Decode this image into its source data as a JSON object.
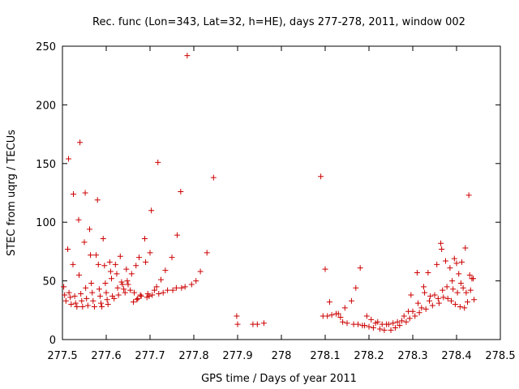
{
  "chart_data": {
    "type": "scatter",
    "title": "Rec. func (Lon=343, Lat=32, h=HE), days 277-278, 2011, window 002",
    "xlabel": "GPS time / Days of year 2011",
    "ylabel": "STEC from uqrg / TECUs",
    "xlim": [
      277.5,
      278.5
    ],
    "ylim": [
      0,
      250
    ],
    "xticks": [
      277.5,
      277.6,
      277.7,
      277.8,
      277.9,
      278.0,
      278.1,
      278.2,
      278.3,
      278.4,
      278.5
    ],
    "xtick_labels": [
      "277.5",
      "277.6",
      "277.7",
      "277.8",
      "277.9",
      "278",
      "278.1",
      "278.2",
      "278.3",
      "278.4",
      "278.5"
    ],
    "yticks": [
      0,
      50,
      100,
      150,
      200,
      250
    ],
    "ytick_labels": [
      "0",
      "50",
      "100",
      "150",
      "200",
      "250"
    ],
    "marker": "+",
    "color": "#cc0000",
    "series": [
      {
        "name": "STEC",
        "points": [
          [
            277.503,
            45
          ],
          [
            277.505,
            38
          ],
          [
            277.508,
            33
          ],
          [
            277.512,
            77
          ],
          [
            277.514,
            154
          ],
          [
            277.515,
            40
          ],
          [
            277.518,
            36
          ],
          [
            277.52,
            30
          ],
          [
            277.524,
            64
          ],
          [
            277.525,
            124
          ],
          [
            277.528,
            37
          ],
          [
            277.53,
            31
          ],
          [
            277.533,
            28
          ],
          [
            277.537,
            102
          ],
          [
            277.538,
            55
          ],
          [
            277.54,
            168
          ],
          [
            277.542,
            39
          ],
          [
            277.544,
            33
          ],
          [
            277.546,
            28
          ],
          [
            277.55,
            83
          ],
          [
            277.552,
            125
          ],
          [
            277.553,
            44
          ],
          [
            277.555,
            35
          ],
          [
            277.558,
            29
          ],
          [
            277.562,
            94
          ],
          [
            277.564,
            72
          ],
          [
            277.566,
            48
          ],
          [
            277.568,
            40
          ],
          [
            277.57,
            33
          ],
          [
            277.573,
            28
          ],
          [
            277.577,
            72
          ],
          [
            277.58,
            119
          ],
          [
            277.582,
            64
          ],
          [
            277.584,
            43
          ],
          [
            277.586,
            37
          ],
          [
            277.588,
            31
          ],
          [
            277.59,
            28
          ],
          [
            277.593,
            86
          ],
          [
            277.596,
            63
          ],
          [
            277.598,
            48
          ],
          [
            277.6,
            40
          ],
          [
            277.602,
            34
          ],
          [
            277.604,
            30
          ],
          [
            277.608,
            66
          ],
          [
            277.61,
            58
          ],
          [
            277.612,
            52
          ],
          [
            277.614,
            37
          ],
          [
            277.618,
            35
          ],
          [
            277.621,
            64
          ],
          [
            277.624,
            56
          ],
          [
            277.626,
            44
          ],
          [
            277.628,
            38
          ],
          [
            277.632,
            71
          ],
          [
            277.635,
            49
          ],
          [
            277.637,
            47
          ],
          [
            277.64,
            43
          ],
          [
            277.643,
            40
          ],
          [
            277.646,
            60
          ],
          [
            277.648,
            50
          ],
          [
            277.65,
            47
          ],
          [
            277.655,
            42
          ],
          [
            277.658,
            56
          ],
          [
            277.662,
            32
          ],
          [
            277.664,
            40
          ],
          [
            277.668,
            63
          ],
          [
            277.67,
            34
          ],
          [
            277.672,
            35
          ],
          [
            277.675,
            70
          ],
          [
            277.678,
            38
          ],
          [
            277.68,
            37
          ],
          [
            277.688,
            86
          ],
          [
            277.69,
            66
          ],
          [
            277.693,
            36
          ],
          [
            277.695,
            39
          ],
          [
            277.698,
            37
          ],
          [
            277.7,
            74
          ],
          [
            277.703,
            110
          ],
          [
            277.705,
            38
          ],
          [
            277.71,
            42
          ],
          [
            277.715,
            45
          ],
          [
            277.718,
            151
          ],
          [
            277.72,
            39
          ],
          [
            277.725,
            51
          ],
          [
            277.73,
            40
          ],
          [
            277.735,
            59
          ],
          [
            277.74,
            42
          ],
          [
            277.75,
            70
          ],
          [
            277.752,
            42
          ],
          [
            277.76,
            44
          ],
          [
            277.762,
            89
          ],
          [
            277.77,
            126
          ],
          [
            277.772,
            44
          ],
          [
            277.78,
            45
          ],
          [
            277.785,
            242
          ],
          [
            277.795,
            47
          ],
          [
            277.805,
            50
          ],
          [
            277.815,
            58
          ],
          [
            277.83,
            74
          ],
          [
            277.845,
            138
          ],
          [
            277.898,
            20
          ],
          [
            277.9,
            13
          ],
          [
            277.935,
            13
          ],
          [
            277.945,
            13
          ],
          [
            277.96,
            14
          ],
          [
            278.09,
            139
          ],
          [
            278.095,
            20
          ],
          [
            278.1,
            60
          ],
          [
            278.105,
            20
          ],
          [
            278.11,
            32
          ],
          [
            278.115,
            21
          ],
          [
            278.125,
            22
          ],
          [
            278.13,
            22
          ],
          [
            278.135,
            19
          ],
          [
            278.14,
            15
          ],
          [
            278.145,
            27
          ],
          [
            278.15,
            14
          ],
          [
            278.16,
            33
          ],
          [
            278.165,
            13
          ],
          [
            278.17,
            44
          ],
          [
            278.175,
            13
          ],
          [
            278.18,
            61
          ],
          [
            278.185,
            12
          ],
          [
            278.19,
            12
          ],
          [
            278.195,
            20
          ],
          [
            278.2,
            11
          ],
          [
            278.205,
            17
          ],
          [
            278.21,
            10
          ],
          [
            278.215,
            14
          ],
          [
            278.22,
            15
          ],
          [
            278.225,
            9
          ],
          [
            278.23,
            13
          ],
          [
            278.235,
            8
          ],
          [
            278.24,
            13
          ],
          [
            278.245,
            13
          ],
          [
            278.25,
            8
          ],
          [
            278.255,
            14
          ],
          [
            278.26,
            10
          ],
          [
            278.265,
            15
          ],
          [
            278.27,
            12
          ],
          [
            278.275,
            16
          ],
          [
            278.28,
            20
          ],
          [
            278.285,
            15
          ],
          [
            278.29,
            24
          ],
          [
            278.293,
            18
          ],
          [
            278.296,
            38
          ],
          [
            278.3,
            24
          ],
          [
            278.305,
            20
          ],
          [
            278.31,
            57
          ],
          [
            278.312,
            31
          ],
          [
            278.315,
            23
          ],
          [
            278.32,
            27
          ],
          [
            278.325,
            45
          ],
          [
            278.327,
            40
          ],
          [
            278.33,
            26
          ],
          [
            278.335,
            57
          ],
          [
            278.338,
            33
          ],
          [
            278.34,
            37
          ],
          [
            278.345,
            29
          ],
          [
            278.35,
            38
          ],
          [
            278.355,
            64
          ],
          [
            278.358,
            35
          ],
          [
            278.36,
            31
          ],
          [
            278.364,
            82
          ],
          [
            278.366,
            77
          ],
          [
            278.368,
            42
          ],
          [
            278.37,
            36
          ],
          [
            278.375,
            67
          ],
          [
            278.378,
            45
          ],
          [
            278.38,
            35
          ],
          [
            278.385,
            61
          ],
          [
            278.388,
            33
          ],
          [
            278.39,
            50
          ],
          [
            278.392,
            43
          ],
          [
            278.395,
            69
          ],
          [
            278.397,
            30
          ],
          [
            278.4,
            65
          ],
          [
            278.402,
            40
          ],
          [
            278.405,
            56
          ],
          [
            278.408,
            28
          ],
          [
            278.41,
            48
          ],
          [
            278.412,
            66
          ],
          [
            278.415,
            44
          ],
          [
            278.418,
            27
          ],
          [
            278.42,
            78
          ],
          [
            278.422,
            40
          ],
          [
            278.425,
            32
          ],
          [
            278.428,
            123
          ],
          [
            278.43,
            55
          ],
          [
            278.432,
            42
          ],
          [
            278.435,
            52
          ],
          [
            278.438,
            52
          ],
          [
            278.44,
            34
          ]
        ]
      }
    ]
  }
}
